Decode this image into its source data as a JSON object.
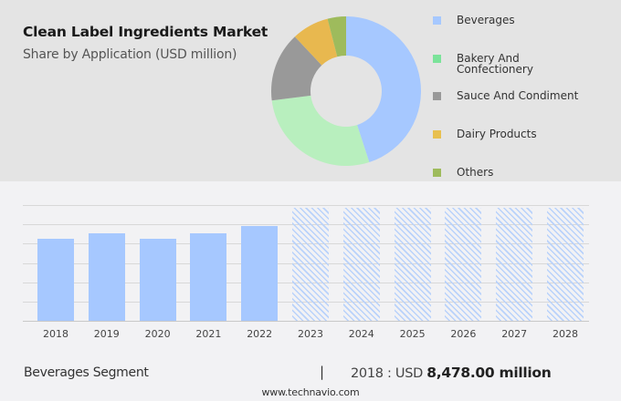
{
  "header": {
    "title": "Clean Label Ingredients Market",
    "subtitle": "Share by Application (USD million)"
  },
  "legend": [
    {
      "label": "Beverages",
      "color": "#a6c8ff"
    },
    {
      "label": "Bakery And Confectionery",
      "color": "#7be39a"
    },
    {
      "label": "Sauce And Condiment",
      "color": "#999999"
    },
    {
      "label": "Dairy Products",
      "color": "#e8c050"
    },
    {
      "label": "Others",
      "color": "#9ebb5c"
    }
  ],
  "footer": {
    "segment": "Beverages Segment",
    "separator": "|",
    "year_prefix": "2018 : USD ",
    "value": "8,478.00 million",
    "url": "www.technavio.com"
  },
  "chart_data": [
    {
      "type": "pie",
      "title": "Clean Label Ingredients Market",
      "subtitle": "Share by Application (USD million)",
      "donut": true,
      "categories": [
        "Beverages",
        "Bakery And Confectionery",
        "Sauce And Condiment",
        "Dairy Products",
        "Others"
      ],
      "values": [
        45,
        28,
        15,
        8,
        4
      ],
      "colors": [
        "#a6c8ff",
        "#b8efbe",
        "#999999",
        "#e8b84f",
        "#9ebb5c"
      ],
      "legend_position": "right"
    },
    {
      "type": "bar",
      "title": "Beverages Segment",
      "categories": [
        "2018",
        "2019",
        "2020",
        "2021",
        "2022",
        "2023",
        "2024",
        "2025",
        "2026",
        "2027",
        "2028"
      ],
      "values": [
        8478,
        9100,
        8500,
        9100,
        9800,
        null,
        null,
        null,
        null,
        null,
        null
      ],
      "forecast_years": [
        "2023",
        "2024",
        "2025",
        "2026",
        "2027",
        "2028"
      ],
      "annotation": "2018 : USD 8,478.00 million",
      "xlabel": "",
      "ylabel": "",
      "ylim": [
        0,
        12000
      ],
      "grid": true,
      "y_axis_labels_visible": false
    }
  ]
}
